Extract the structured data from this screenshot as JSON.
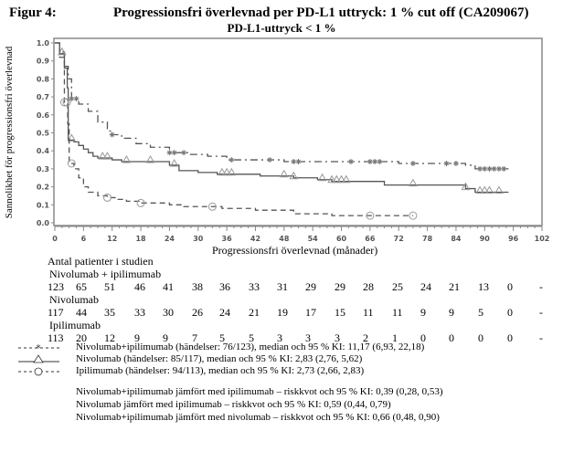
{
  "header": {
    "figure_label": "Figur 4:",
    "title": "Progressionsfri överlevnad per PD-L1 uttryck: 1 % cut off (CA209067)",
    "subtitle": "PD-L1-uttryck < 1 %"
  },
  "chart_data": {
    "type": "line",
    "subtype": "kaplan-meier",
    "title": "PD-L1-uttryck < 1 %",
    "xlabel": "Progressionsfri överlevnad (månader)",
    "ylabel": "Sannolikhet för progressionsfri överlevnad",
    "xlim": [
      0,
      102
    ],
    "ylim": [
      0,
      1.0
    ],
    "x_ticks": [
      "0",
      "6",
      "12",
      "18",
      "24",
      "30",
      "36",
      "42",
      "48",
      "54",
      "60",
      "66",
      "72",
      "78",
      "84",
      "90",
      "96",
      "102"
    ],
    "y_ticks": [
      "0.0",
      "0.1",
      "0.2",
      "0.3",
      "0.4",
      "0.5",
      "0.6",
      "0.7",
      "0.8",
      "0.9",
      "1.0"
    ],
    "grid": false,
    "series": [
      {
        "name": "Nivolumab+ipilimumab",
        "style": "dash-dot",
        "marker": "asterisk",
        "color": "#555555",
        "x": [
          0,
          1,
          2,
          2.8,
          3.5,
          5,
          7,
          9,
          11,
          12,
          14,
          17,
          20,
          24,
          28,
          32,
          36,
          42,
          48,
          54,
          60,
          66,
          72,
          78,
          84,
          86,
          88,
          95
        ],
        "y": [
          1.0,
          0.95,
          0.87,
          0.8,
          0.69,
          0.66,
          0.62,
          0.56,
          0.51,
          0.49,
          0.47,
          0.44,
          0.42,
          0.39,
          0.38,
          0.37,
          0.35,
          0.35,
          0.34,
          0.34,
          0.34,
          0.34,
          0.33,
          0.33,
          0.33,
          0.32,
          0.3,
          0.3
        ],
        "censor_x": [
          3.5,
          4.5,
          12,
          24,
          25,
          27,
          37,
          45,
          50,
          51,
          62,
          66,
          67,
          68,
          75,
          82,
          84,
          89,
          90,
          91,
          92,
          93,
          94
        ]
      },
      {
        "name": "Nivolumab",
        "style": "solid",
        "marker": "triangle",
        "color": "#555555",
        "x": [
          0,
          1,
          2,
          2.6,
          2.8,
          4,
          5,
          6,
          7,
          8,
          9,
          12,
          14,
          22,
          24,
          26,
          30,
          34,
          40,
          43,
          50,
          55,
          58,
          66,
          69,
          71,
          80,
          86,
          88,
          95
        ],
        "y": [
          1.0,
          0.94,
          0.86,
          0.75,
          0.46,
          0.45,
          0.43,
          0.41,
          0.39,
          0.37,
          0.36,
          0.35,
          0.34,
          0.34,
          0.32,
          0.29,
          0.28,
          0.27,
          0.27,
          0.26,
          0.25,
          0.24,
          0.23,
          0.23,
          0.21,
          0.21,
          0.21,
          0.19,
          0.17,
          0.17
        ],
        "censor_x": [
          1.5,
          3.5,
          10,
          11,
          15,
          20,
          25,
          35,
          36,
          37,
          48,
          50,
          56,
          58,
          59,
          60,
          61,
          75,
          86,
          89,
          90,
          91,
          93
        ]
      },
      {
        "name": "Ipilimumab",
        "style": "dashed",
        "marker": "circle",
        "color": "#555555",
        "x": [
          0,
          1,
          2,
          2.7,
          3,
          4,
          5,
          6,
          7,
          9,
          11,
          13,
          15,
          18,
          24,
          27,
          35,
          42,
          50,
          55,
          58,
          66,
          75
        ],
        "y": [
          1.0,
          0.92,
          0.67,
          0.55,
          0.33,
          0.3,
          0.25,
          0.2,
          0.17,
          0.15,
          0.14,
          0.13,
          0.12,
          0.11,
          0.1,
          0.09,
          0.08,
          0.07,
          0.05,
          0.05,
          0.04,
          0.04,
          0.04
        ],
        "censor_x": [
          2,
          2.5,
          3.5,
          11,
          18,
          33,
          66,
          75
        ]
      }
    ],
    "legend_placement": "bottom"
  },
  "risk_table": {
    "title": "Antal patienter i studien",
    "groups": [
      {
        "name": "Nivolumab + ipilimumab",
        "values": [
          "123",
          "65",
          "51",
          "46",
          "41",
          "38",
          "36",
          "33",
          "31",
          "29",
          "29",
          "28",
          "25",
          "24",
          "21",
          "13",
          "0",
          "-"
        ]
      },
      {
        "name": "Nivolumab",
        "values": [
          "117",
          "44",
          "35",
          "33",
          "30",
          "26",
          "24",
          "21",
          "19",
          "17",
          "15",
          "11",
          "11",
          "9",
          "9",
          "5",
          "0",
          "-"
        ]
      },
      {
        "name": "Ipilimumab",
        "values": [
          "113",
          "20",
          "12",
          "9",
          "9",
          "7",
          "5",
          "5",
          "3",
          "3",
          "3",
          "2",
          "1",
          "0",
          "0",
          "0",
          "0",
          "-"
        ]
      }
    ]
  },
  "legend": [
    {
      "symbol": "- - -*- - -",
      "text": "Nivolumab+ipilimumab (händelser: 76/123), median och 95 % KI: 11,17 (6,93, 22,18)"
    },
    {
      "symbol": "—△——",
      "text": "Nivolumab (händelser: 85/117), median och 95 % KI: 2,83 (2,76, 5,62)"
    },
    {
      "symbol": "- - -O- - -",
      "text": "Ipilimumab (händelser: 94/113), median och 95 % KI: 2,73 (2,66, 2,83)"
    }
  ],
  "hazard_ratios": [
    "Nivolumab+ipilimumab jämfört med ipilimumab – riskkvot och 95 % KI: 0,39 (0,28, 0,53)",
    "Nivolumab jämfört med ipilimumab – riskkvot och 95 % KI: 0,59 (0,44, 0,79)",
    "Nivolumab+ipilimumab jämfört med nivolumab – riskkvot och 95 % KI: 0,66 (0,48, 0,90)"
  ]
}
